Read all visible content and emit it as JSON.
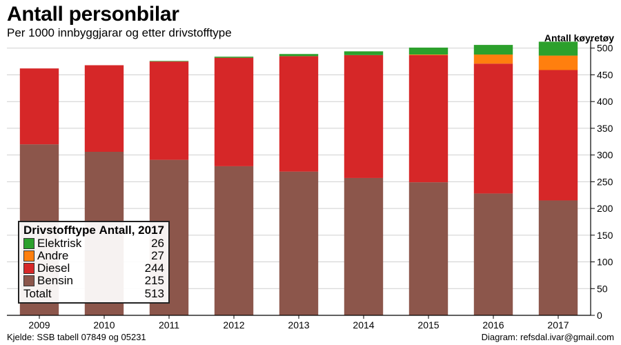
{
  "header": {
    "title": "Antall personbilar",
    "subtitle": "Per 1000 innbyggjarar og etter drivstofftype",
    "ylabel": "Antall køyretøy"
  },
  "footer": {
    "source": "Kjelde: SSB tabell 07849 og 05231",
    "credit": "Diagram: refsdal.ivar@gmail.com"
  },
  "legend": {
    "col1": "Drivstofftype",
    "col2": "Antall, 2017",
    "items": [
      {
        "name": "Elektrisk",
        "value": "26",
        "color": "#2ca02c"
      },
      {
        "name": "Andre",
        "value": "27",
        "color": "#ff7f0e"
      },
      {
        "name": "Diesel",
        "value": "244",
        "color": "#d62728"
      },
      {
        "name": "Bensin",
        "value": "215",
        "color": "#8c564b"
      }
    ],
    "total_label": "Totalt",
    "total_value": "513"
  },
  "chart_data": {
    "type": "bar",
    "stacked": true,
    "title": "Antall personbilar",
    "subtitle": "Per 1000 innbyggjarar og etter drivstofftype",
    "xlabel": "",
    "ylabel": "Antall køyretøy",
    "ylim": [
      0,
      510
    ],
    "yticks": [
      0,
      50,
      100,
      150,
      200,
      250,
      300,
      350,
      400,
      450,
      500
    ],
    "y_axis_side": "right",
    "grid": true,
    "categories": [
      "2009",
      "2010",
      "2011",
      "2012",
      "2013",
      "2014",
      "2015",
      "2016",
      "2017"
    ],
    "series": [
      {
        "name": "Bensin",
        "color": "#8c564b",
        "values": [
          320,
          306,
          291,
          279,
          269,
          257,
          249,
          228,
          215
        ]
      },
      {
        "name": "Diesel",
        "color": "#d62728",
        "values": [
          142,
          162,
          184,
          203,
          216,
          230,
          238,
          243,
          244
        ]
      },
      {
        "name": "Andre",
        "color": "#ff7f0e",
        "values": [
          0,
          0,
          0,
          0,
          0,
          0,
          1,
          17,
          27
        ]
      },
      {
        "name": "Elektrisk",
        "color": "#2ca02c",
        "values": [
          0,
          0,
          1,
          2,
          4,
          7,
          13,
          18,
          26
        ]
      }
    ]
  }
}
